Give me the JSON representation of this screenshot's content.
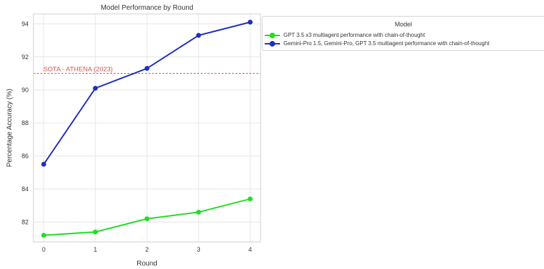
{
  "chart_data": {
    "type": "line",
    "title": "Model Performance by Round",
    "xlabel": "Round",
    "ylabel": "Percentage Accuracy (%)",
    "x": [
      0,
      1,
      2,
      3,
      4
    ],
    "xlim": [
      -0.2,
      4.2
    ],
    "ylim": [
      80.8,
      94.6
    ],
    "xticks": [
      0,
      1,
      2,
      3,
      4
    ],
    "yticks": [
      82,
      84,
      86,
      88,
      90,
      92,
      94
    ],
    "grid": true,
    "legend": {
      "title": "Model",
      "placement": "outside-top-right"
    },
    "series": [
      {
        "name": "GPT 3.5 x3 multiagent performance with chain-of-thought",
        "values": [
          81.2,
          81.4,
          82.2,
          82.6,
          83.4
        ],
        "color": "#22dd22"
      },
      {
        "name": "Gemini-Pro 1.5, Gemini-Pro, GPT 3.5 multiagent performance with chain-of-thought",
        "values": [
          85.5,
          90.1,
          91.3,
          93.3,
          94.1
        ],
        "color": "#1f2fbf"
      }
    ],
    "reference_lines": [
      {
        "label": "SOTA - ATHENA (2023)",
        "y": 91.0,
        "color": "#d9534f",
        "style": "dashed"
      }
    ]
  }
}
